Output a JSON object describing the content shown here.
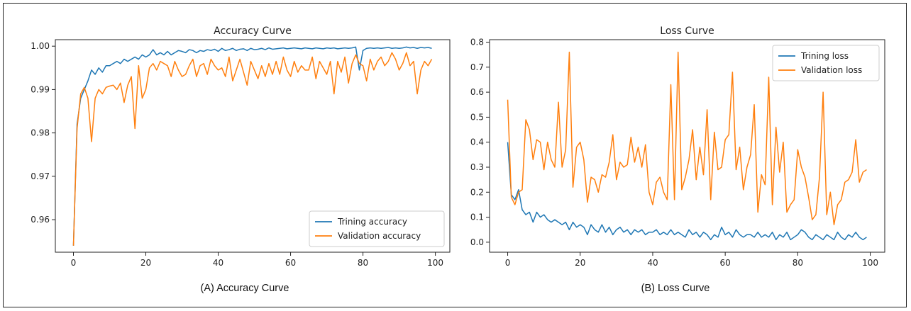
{
  "figure": {
    "captions": [
      "(A) Accuracy Curve",
      "(B) Loss Curve"
    ]
  },
  "chart_data": [
    {
      "type": "line",
      "title": "Accuracy Curve",
      "xlabel": "",
      "ylabel": "",
      "xlim": [
        -5,
        104
      ],
      "ylim": [
        0.9525,
        1.0015
      ],
      "xticks": [
        0,
        20,
        40,
        60,
        80,
        100
      ],
      "yticks": [
        0.96,
        0.97,
        0.98,
        0.99,
        1.0
      ],
      "ytick_labels": [
        "0.96",
        "0.97",
        "0.98",
        "0.99",
        "1.00"
      ],
      "grid": false,
      "legend": "lower-right",
      "x": [
        0,
        1,
        2,
        3,
        4,
        5,
        6,
        7,
        8,
        9,
        10,
        11,
        12,
        13,
        14,
        15,
        16,
        17,
        18,
        19,
        20,
        21,
        22,
        23,
        24,
        25,
        26,
        27,
        28,
        29,
        30,
        31,
        32,
        33,
        34,
        35,
        36,
        37,
        38,
        39,
        40,
        41,
        42,
        43,
        44,
        45,
        46,
        47,
        48,
        49,
        50,
        51,
        52,
        53,
        54,
        55,
        56,
        57,
        58,
        59,
        60,
        61,
        62,
        63,
        64,
        65,
        66,
        67,
        68,
        69,
        70,
        71,
        72,
        73,
        74,
        75,
        76,
        77,
        78,
        79,
        80,
        81,
        82,
        83,
        84,
        85,
        86,
        87,
        88,
        89,
        90,
        91,
        92,
        93,
        94,
        95,
        96,
        97,
        98,
        99
      ],
      "series": [
        {
          "name": "Trining accuracy",
          "color": "#1f77b4",
          "values": [
            0.954,
            0.982,
            0.988,
            0.99,
            0.992,
            0.9945,
            0.9935,
            0.995,
            0.994,
            0.9955,
            0.9955,
            0.996,
            0.9965,
            0.996,
            0.997,
            0.9965,
            0.997,
            0.9975,
            0.997,
            0.998,
            0.9975,
            0.998,
            0.9992,
            0.998,
            0.9985,
            0.998,
            0.9988,
            0.998,
            0.9985,
            0.999,
            0.9988,
            0.9985,
            0.9992,
            0.999,
            0.9985,
            0.999,
            0.9988,
            0.9992,
            0.999,
            0.9993,
            0.9988,
            0.9995,
            0.999,
            0.9992,
            0.9995,
            0.999,
            0.9993,
            0.9994,
            0.999,
            0.9995,
            0.9992,
            0.9993,
            0.9995,
            0.9992,
            0.9996,
            0.9993,
            0.9994,
            0.9995,
            0.9996,
            0.9994,
            0.9995,
            0.9996,
            0.9995,
            0.9994,
            0.9996,
            0.9995,
            0.9994,
            0.9996,
            0.9995,
            0.9994,
            0.9996,
            0.9995,
            0.9996,
            0.9994,
            0.9995,
            0.9996,
            0.9995,
            0.9996,
            0.9998,
            0.9945,
            0.999,
            0.9995,
            0.9996,
            0.9995,
            0.9996,
            0.9995,
            0.9996,
            0.9997,
            0.9995,
            0.9996,
            0.9995,
            0.9996,
            0.9998,
            0.9996,
            0.9997,
            0.9995,
            0.9997,
            0.9996,
            0.9997,
            0.9995
          ]
        },
        {
          "name": "Validation accuracy",
          "color": "#ff7f0e",
          "values": [
            0.954,
            0.981,
            0.989,
            0.9905,
            0.988,
            0.978,
            0.988,
            0.99,
            0.989,
            0.9905,
            0.9908,
            0.991,
            0.99,
            0.9915,
            0.987,
            0.991,
            0.993,
            0.981,
            0.9955,
            0.988,
            0.99,
            0.995,
            0.996,
            0.9945,
            0.9965,
            0.996,
            0.9955,
            0.993,
            0.9965,
            0.9945,
            0.993,
            0.9935,
            0.9955,
            0.997,
            0.993,
            0.9955,
            0.996,
            0.9935,
            0.997,
            0.9955,
            0.9945,
            0.995,
            0.993,
            0.9975,
            0.992,
            0.9945,
            0.997,
            0.994,
            0.991,
            0.9965,
            0.9945,
            0.9925,
            0.9955,
            0.993,
            0.996,
            0.9935,
            0.9965,
            0.9935,
            0.9975,
            0.9945,
            0.993,
            0.9965,
            0.994,
            0.9955,
            0.9945,
            0.9945,
            0.9975,
            0.9925,
            0.9965,
            0.995,
            0.9935,
            0.9965,
            0.989,
            0.9965,
            0.994,
            0.9975,
            0.9915,
            0.996,
            0.998,
            0.996,
            0.9955,
            0.992,
            0.997,
            0.9945,
            0.9965,
            0.9975,
            0.9955,
            0.9965,
            0.9985,
            0.997,
            0.9945,
            0.996,
            0.9985,
            0.9955,
            0.9965,
            0.989,
            0.9945,
            0.9965,
            0.9955,
            0.997
          ]
        }
      ]
    },
    {
      "type": "line",
      "title": "Loss Curve",
      "xlabel": "",
      "ylabel": "",
      "xlim": [
        -5,
        104
      ],
      "ylim": [
        -0.04,
        0.81
      ],
      "xticks": [
        0,
        20,
        40,
        60,
        80,
        100
      ],
      "yticks": [
        0.0,
        0.1,
        0.2,
        0.3,
        0.4,
        0.5,
        0.6,
        0.7,
        0.8
      ],
      "ytick_labels": [
        "0.0",
        "0.1",
        "0.2",
        "0.3",
        "0.4",
        "0.5",
        "0.6",
        "0.7",
        "0.8"
      ],
      "grid": false,
      "legend": "top-right",
      "x": [
        0,
        1,
        2,
        3,
        4,
        5,
        6,
        7,
        8,
        9,
        10,
        11,
        12,
        13,
        14,
        15,
        16,
        17,
        18,
        19,
        20,
        21,
        22,
        23,
        24,
        25,
        26,
        27,
        28,
        29,
        30,
        31,
        32,
        33,
        34,
        35,
        36,
        37,
        38,
        39,
        40,
        41,
        42,
        43,
        44,
        45,
        46,
        47,
        48,
        49,
        50,
        51,
        52,
        53,
        54,
        55,
        56,
        57,
        58,
        59,
        60,
        61,
        62,
        63,
        64,
        65,
        66,
        67,
        68,
        69,
        70,
        71,
        72,
        73,
        74,
        75,
        76,
        77,
        78,
        79,
        80,
        81,
        82,
        83,
        84,
        85,
        86,
        87,
        88,
        89,
        90,
        91,
        92,
        93,
        94,
        95,
        96,
        97,
        98,
        99
      ],
      "series": [
        {
          "name": "Trining loss",
          "color": "#1f77b4",
          "values": [
            0.4,
            0.19,
            0.17,
            0.21,
            0.13,
            0.11,
            0.12,
            0.08,
            0.12,
            0.1,
            0.11,
            0.09,
            0.08,
            0.09,
            0.08,
            0.07,
            0.08,
            0.05,
            0.08,
            0.06,
            0.07,
            0.06,
            0.03,
            0.07,
            0.05,
            0.04,
            0.07,
            0.04,
            0.06,
            0.03,
            0.05,
            0.06,
            0.04,
            0.05,
            0.03,
            0.05,
            0.04,
            0.05,
            0.03,
            0.04,
            0.04,
            0.05,
            0.03,
            0.04,
            0.03,
            0.05,
            0.03,
            0.04,
            0.03,
            0.02,
            0.05,
            0.03,
            0.04,
            0.02,
            0.04,
            0.03,
            0.01,
            0.03,
            0.02,
            0.06,
            0.03,
            0.04,
            0.02,
            0.05,
            0.03,
            0.02,
            0.03,
            0.03,
            0.02,
            0.04,
            0.02,
            0.03,
            0.02,
            0.04,
            0.01,
            0.03,
            0.02,
            0.04,
            0.01,
            0.02,
            0.03,
            0.05,
            0.04,
            0.02,
            0.01,
            0.03,
            0.02,
            0.01,
            0.03,
            0.02,
            0.01,
            0.04,
            0.02,
            0.01,
            0.03,
            0.02,
            0.04,
            0.02,
            0.01,
            0.02
          ]
        },
        {
          "name": "Validation loss",
          "color": "#ff7f0e",
          "values": [
            0.57,
            0.18,
            0.15,
            0.2,
            0.21,
            0.49,
            0.45,
            0.33,
            0.41,
            0.4,
            0.29,
            0.4,
            0.33,
            0.3,
            0.56,
            0.3,
            0.37,
            0.76,
            0.22,
            0.38,
            0.4,
            0.33,
            0.16,
            0.26,
            0.25,
            0.2,
            0.27,
            0.26,
            0.32,
            0.43,
            0.25,
            0.32,
            0.3,
            0.31,
            0.42,
            0.32,
            0.38,
            0.3,
            0.39,
            0.2,
            0.15,
            0.24,
            0.26,
            0.2,
            0.17,
            0.63,
            0.17,
            0.76,
            0.21,
            0.26,
            0.33,
            0.45,
            0.25,
            0.38,
            0.27,
            0.53,
            0.17,
            0.44,
            0.29,
            0.3,
            0.41,
            0.43,
            0.68,
            0.29,
            0.38,
            0.21,
            0.3,
            0.35,
            0.55,
            0.12,
            0.27,
            0.23,
            0.66,
            0.15,
            0.46,
            0.28,
            0.4,
            0.12,
            0.15,
            0.17,
            0.37,
            0.3,
            0.26,
            0.18,
            0.09,
            0.11,
            0.26,
            0.6,
            0.11,
            0.2,
            0.07,
            0.15,
            0.17,
            0.24,
            0.25,
            0.28,
            0.41,
            0.24,
            0.28,
            0.29
          ]
        }
      ]
    }
  ]
}
